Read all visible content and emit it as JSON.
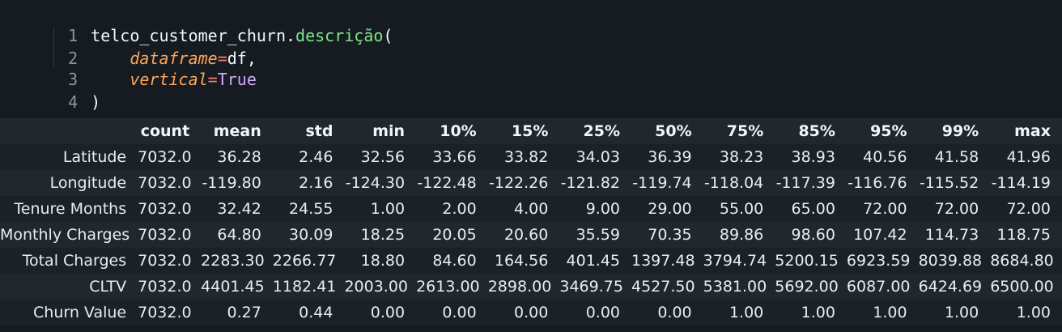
{
  "code": {
    "line_numbers": [
      "1",
      "2",
      "3",
      "4"
    ],
    "line1": {
      "object": "telco_customer_churn",
      "dot": ".",
      "method": "descrição",
      "open": "("
    },
    "line2": {
      "param": "dataframe",
      "eq": "=",
      "value": "df",
      "comma": ","
    },
    "line3": {
      "param": "vertical",
      "eq": "=",
      "value": "True"
    },
    "line4": {
      "close": ")"
    }
  },
  "table": {
    "columns": [
      "",
      "count",
      "mean",
      "std",
      "min",
      "10%",
      "15%",
      "25%",
      "50%",
      "75%",
      "85%",
      "95%",
      "99%",
      "max"
    ],
    "rows": [
      {
        "label": "Latitude",
        "values": [
          "7032.0",
          "36.28",
          "2.46",
          "32.56",
          "33.66",
          "33.82",
          "34.03",
          "36.39",
          "38.23",
          "38.93",
          "40.56",
          "41.58",
          "41.96"
        ]
      },
      {
        "label": "Longitude",
        "values": [
          "7032.0",
          "-119.80",
          "2.16",
          "-124.30",
          "-122.48",
          "-122.26",
          "-121.82",
          "-119.74",
          "-118.04",
          "-117.39",
          "-116.76",
          "-115.52",
          "-114.19"
        ]
      },
      {
        "label": "Tenure Months",
        "values": [
          "7032.0",
          "32.42",
          "24.55",
          "1.00",
          "2.00",
          "4.00",
          "9.00",
          "29.00",
          "55.00",
          "65.00",
          "72.00",
          "72.00",
          "72.00"
        ]
      },
      {
        "label": "Monthly Charges",
        "values": [
          "7032.0",
          "64.80",
          "30.09",
          "18.25",
          "20.05",
          "20.60",
          "35.59",
          "70.35",
          "89.86",
          "98.60",
          "107.42",
          "114.73",
          "118.75"
        ]
      },
      {
        "label": "Total Charges",
        "values": [
          "7032.0",
          "2283.30",
          "2266.77",
          "18.80",
          "84.60",
          "164.56",
          "401.45",
          "1397.48",
          "3794.74",
          "5200.15",
          "6923.59",
          "8039.88",
          "8684.80"
        ]
      },
      {
        "label": "CLTV",
        "values": [
          "7032.0",
          "4401.45",
          "1182.41",
          "2003.00",
          "2613.00",
          "2898.00",
          "3469.75",
          "4527.50",
          "5381.00",
          "5692.00",
          "6087.00",
          "6424.69",
          "6500.00"
        ]
      },
      {
        "label": "Churn Value",
        "values": [
          "7032.0",
          "0.27",
          "0.44",
          "0.00",
          "0.00",
          "0.00",
          "0.00",
          "0.00",
          "1.00",
          "1.00",
          "1.00",
          "1.00",
          "1.00"
        ]
      }
    ]
  }
}
